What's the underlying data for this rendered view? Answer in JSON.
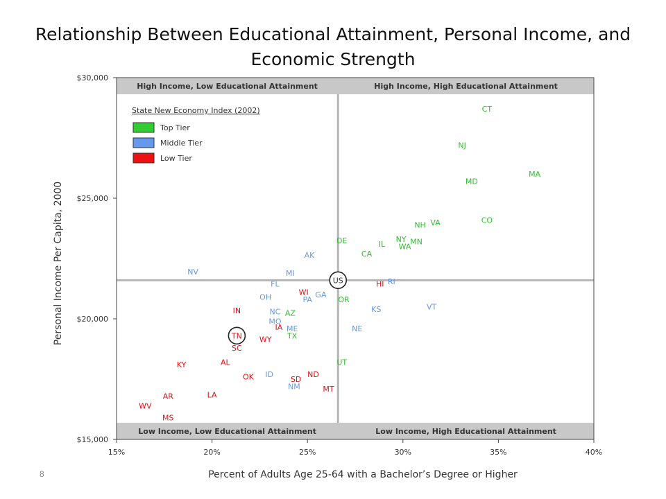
{
  "slide": {
    "title": "Relationship Between Educational Attainment, Personal Income, and Economic Strength",
    "page_number": "8"
  },
  "chart_data": {
    "type": "scatter",
    "title": "Relationship Between Educational Attainment, Personal Income, and Economic Strength",
    "xlabel": "Percent of Adults Age 25-64 with a Bachelor’s Degree or Higher",
    "ylabel": "Personal Income Per Capita, 2000",
    "xlim": [
      15,
      40
    ],
    "ylim": [
      15000,
      30000
    ],
    "x_ticks": [
      15,
      20,
      25,
      30,
      35,
      40
    ],
    "x_tick_labels": [
      "15%",
      "20%",
      "25%",
      "30%",
      "35%",
      "40%"
    ],
    "y_ticks": [
      15000,
      20000,
      25000,
      30000
    ],
    "y_tick_labels": [
      "$15,000",
      "$20,000",
      "$25,000",
      "$30,000"
    ],
    "reference_lines": {
      "x": 26.6,
      "y": 21600
    },
    "quadrant_labels": {
      "top_left": "High Income, Low Educational Attainment",
      "top_right": "High Income, High Educational Attainment",
      "bottom_left": "Low Income, Low Educational Attainment",
      "bottom_right": "Low Income, High Educational Attainment"
    },
    "legend": {
      "title": "State New Economy Index (2002)",
      "placement": "top-left",
      "items": [
        {
          "label": "Top Tier",
          "color": "#33cc33"
        },
        {
          "label": "Middle Tier",
          "color": "#6699ee"
        },
        {
          "label": "Low Tier",
          "color": "#ee1111"
        }
      ]
    },
    "tier_colors": {
      "top": "#33bb33",
      "middle": "#6699dd",
      "low": "#dd1111",
      "us": "#333333"
    },
    "circled": [
      "US",
      "TN"
    ],
    "points": [
      {
        "label": "CT",
        "x": 34.4,
        "y": 28700,
        "tier": "top"
      },
      {
        "label": "NJ",
        "x": 33.1,
        "y": 27200,
        "tier": "top"
      },
      {
        "label": "MA",
        "x": 36.9,
        "y": 26000,
        "tier": "top"
      },
      {
        "label": "MD",
        "x": 33.6,
        "y": 25700,
        "tier": "top"
      },
      {
        "label": "CO",
        "x": 34.4,
        "y": 24100,
        "tier": "top"
      },
      {
        "label": "NH",
        "x": 30.9,
        "y": 23900,
        "tier": "top"
      },
      {
        "label": "VA",
        "x": 31.7,
        "y": 24000,
        "tier": "top"
      },
      {
        "label": "DE",
        "x": 26.8,
        "y": 23250,
        "tier": "top"
      },
      {
        "label": "IL",
        "x": 28.9,
        "y": 23100,
        "tier": "top"
      },
      {
        "label": "NY",
        "x": 29.9,
        "y": 23300,
        "tier": "top"
      },
      {
        "label": "MN",
        "x": 30.7,
        "y": 23200,
        "tier": "top"
      },
      {
        "label": "WA",
        "x": 30.1,
        "y": 23000,
        "tier": "top"
      },
      {
        "label": "CA",
        "x": 28.1,
        "y": 22700,
        "tier": "top"
      },
      {
        "label": "AK",
        "x": 25.1,
        "y": 22650,
        "tier": "middle"
      },
      {
        "label": "NV",
        "x": 19.0,
        "y": 21950,
        "tier": "middle"
      },
      {
        "label": "MI",
        "x": 24.1,
        "y": 21900,
        "tier": "middle"
      },
      {
        "label": "FL",
        "x": 23.3,
        "y": 21450,
        "tier": "middle"
      },
      {
        "label": "RI",
        "x": 29.4,
        "y": 21550,
        "tier": "middle"
      },
      {
        "label": "HI",
        "x": 28.8,
        "y": 21450,
        "tier": "low"
      },
      {
        "label": "WI",
        "x": 24.8,
        "y": 21100,
        "tier": "low"
      },
      {
        "label": "GA",
        "x": 25.7,
        "y": 21000,
        "tier": "middle"
      },
      {
        "label": "OR",
        "x": 26.9,
        "y": 20800,
        "tier": "top"
      },
      {
        "label": "OH",
        "x": 22.8,
        "y": 20900,
        "tier": "middle"
      },
      {
        "label": "PA",
        "x": 25.0,
        "y": 20800,
        "tier": "middle"
      },
      {
        "label": "VT",
        "x": 31.5,
        "y": 20500,
        "tier": "middle"
      },
      {
        "label": "KS",
        "x": 28.6,
        "y": 20400,
        "tier": "middle"
      },
      {
        "label": "IN",
        "x": 21.3,
        "y": 20350,
        "tier": "low"
      },
      {
        "label": "NC",
        "x": 23.3,
        "y": 20300,
        "tier": "middle"
      },
      {
        "label": "AZ",
        "x": 24.1,
        "y": 20250,
        "tier": "top"
      },
      {
        "label": "MO",
        "x": 23.3,
        "y": 19900,
        "tier": "middle"
      },
      {
        "label": "IA",
        "x": 23.5,
        "y": 19650,
        "tier": "low"
      },
      {
        "label": "ME",
        "x": 24.2,
        "y": 19600,
        "tier": "middle"
      },
      {
        "label": "NE",
        "x": 27.6,
        "y": 19600,
        "tier": "middle"
      },
      {
        "label": "TN",
        "x": 21.3,
        "y": 19300,
        "tier": "low"
      },
      {
        "label": "TX",
        "x": 24.2,
        "y": 19300,
        "tier": "top"
      },
      {
        "label": "WY",
        "x": 22.8,
        "y": 19150,
        "tier": "low"
      },
      {
        "label": "SC",
        "x": 21.3,
        "y": 18800,
        "tier": "low"
      },
      {
        "label": "KY",
        "x": 18.4,
        "y": 18100,
        "tier": "low"
      },
      {
        "label": "AL",
        "x": 20.7,
        "y": 18200,
        "tier": "low"
      },
      {
        "label": "UT",
        "x": 26.8,
        "y": 18200,
        "tier": "top"
      },
      {
        "label": "OK",
        "x": 21.9,
        "y": 17600,
        "tier": "low"
      },
      {
        "label": "ID",
        "x": 23.0,
        "y": 17700,
        "tier": "middle"
      },
      {
        "label": "ND",
        "x": 25.3,
        "y": 17700,
        "tier": "low"
      },
      {
        "label": "SD",
        "x": 24.4,
        "y": 17500,
        "tier": "low"
      },
      {
        "label": "NM",
        "x": 24.3,
        "y": 17200,
        "tier": "middle"
      },
      {
        "label": "MT",
        "x": 26.1,
        "y": 17100,
        "tier": "low"
      },
      {
        "label": "AR",
        "x": 17.7,
        "y": 16800,
        "tier": "low"
      },
      {
        "label": "LA",
        "x": 20.0,
        "y": 16850,
        "tier": "low"
      },
      {
        "label": "WV",
        "x": 16.5,
        "y": 16400,
        "tier": "low"
      },
      {
        "label": "MS",
        "x": 17.7,
        "y": 15900,
        "tier": "low"
      },
      {
        "label": "US",
        "x": 26.6,
        "y": 21600,
        "tier": "us"
      }
    ]
  }
}
